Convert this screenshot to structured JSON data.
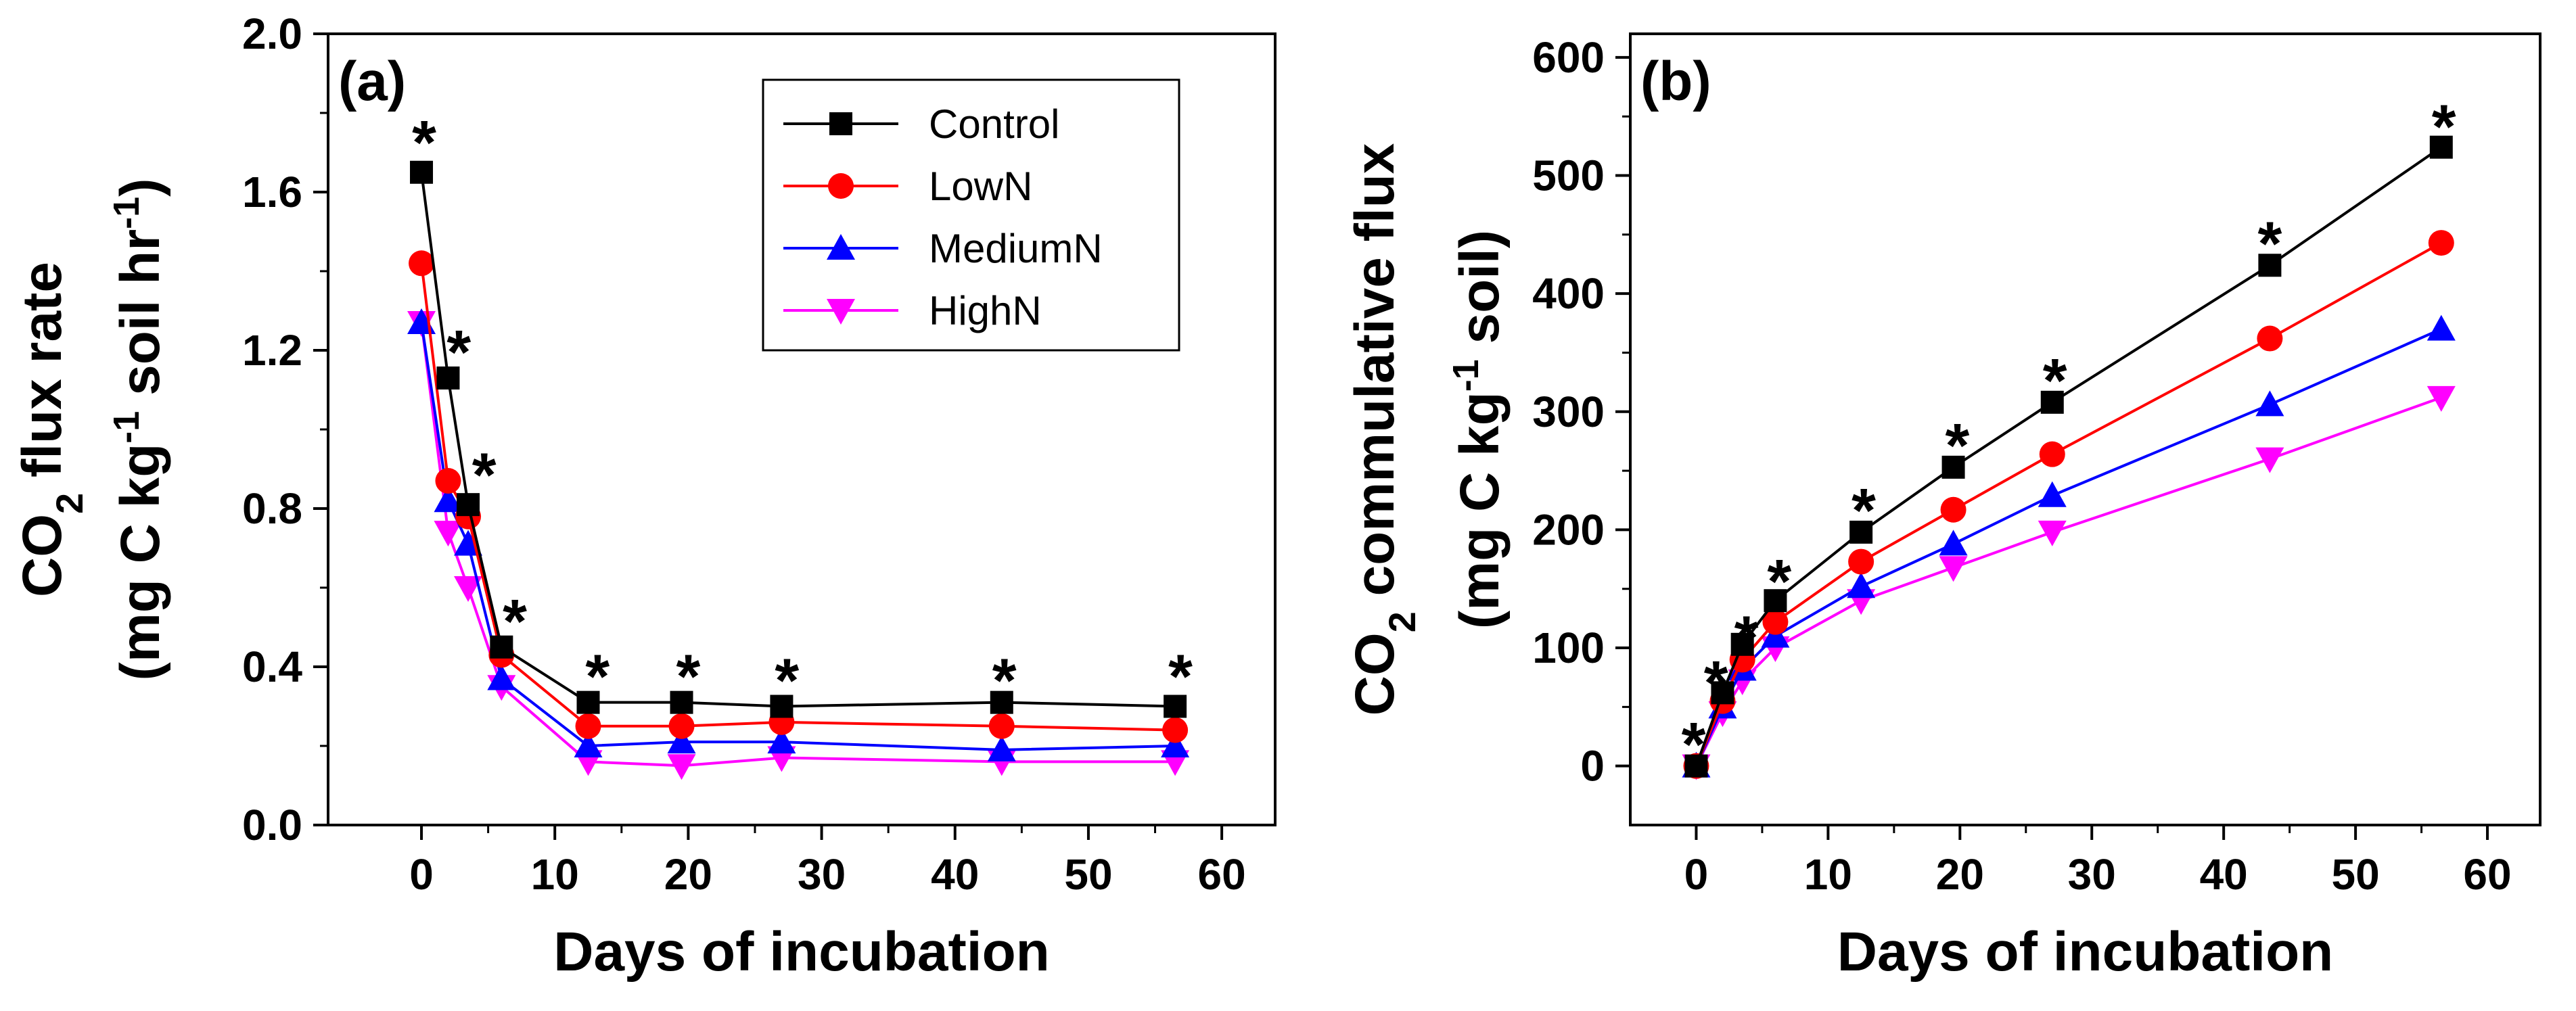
{
  "chart_data": [
    {
      "type": "line",
      "panel_label": "(a)",
      "xlabel": "Days of incubation",
      "ylabel_line1": {
        "pre": "CO",
        "sub": "2",
        "post": " flux rate"
      },
      "ylabel_line2": {
        "pre": "(mg C kg",
        "sup1": "-1",
        "mid": " soil hr",
        "sup2": "-1",
        "post": ")"
      },
      "xlim": [
        -7,
        64
      ],
      "ylim": [
        0,
        2.0
      ],
      "xticks": [
        0,
        10,
        20,
        30,
        40,
        50,
        60
      ],
      "xtick_labels": [
        "0",
        "10",
        "20",
        "30",
        "40",
        "50",
        "60"
      ],
      "yticks": [
        0,
        0.4,
        0.8,
        1.2,
        1.6,
        2.0
      ],
      "ytick_labels": [
        "0.0",
        "0.4",
        "0.8",
        "1.2",
        "1.6",
        "2.0"
      ],
      "x": [
        0,
        2,
        3.5,
        6,
        12.5,
        19.5,
        27,
        43.5,
        56.5
      ],
      "series": [
        {
          "name": "Control",
          "color": "#000000",
          "marker": "square",
          "values": [
            1.65,
            1.13,
            0.81,
            0.45,
            0.31,
            0.31,
            0.3,
            0.31,
            0.3
          ]
        },
        {
          "name": "LowN",
          "color": "#ff0000",
          "marker": "circle",
          "values": [
            1.42,
            0.87,
            0.78,
            0.43,
            0.25,
            0.25,
            0.26,
            0.25,
            0.24
          ]
        },
        {
          "name": "MediumN",
          "color": "#0000ff",
          "marker": "triangle-up",
          "values": [
            1.27,
            0.82,
            0.71,
            0.37,
            0.2,
            0.21,
            0.21,
            0.19,
            0.2
          ]
        },
        {
          "name": "HighN",
          "color": "#ff00ff",
          "marker": "triangle-down",
          "values": [
            1.27,
            0.74,
            0.6,
            0.35,
            0.16,
            0.15,
            0.17,
            0.16,
            0.16
          ]
        }
      ],
      "annotations": [
        {
          "text": "*",
          "x": 0.2,
          "y": 1.76
        },
        {
          "text": "*",
          "x": 2.8,
          "y": 1.23
        },
        {
          "text": "*",
          "x": 4.7,
          "y": 0.92
        },
        {
          "text": "*",
          "x": 7.0,
          "y": 0.55
        },
        {
          "text": "*",
          "x": 13.2,
          "y": 0.41
        },
        {
          "text": "*",
          "x": 20.0,
          "y": 0.41
        },
        {
          "text": "*",
          "x": 27.4,
          "y": 0.4
        },
        {
          "text": "*",
          "x": 43.7,
          "y": 0.4
        },
        {
          "text": "*",
          "x": 56.9,
          "y": 0.41
        }
      ],
      "legend_position": "top-right",
      "grid": false
    },
    {
      "type": "line",
      "panel_label": "(b)",
      "xlabel": "Days of incubation",
      "ylabel_line1": {
        "pre": "CO",
        "sub": "2",
        "post": " commulative flux"
      },
      "ylabel_line2": {
        "pre": "(mg C kg",
        "sup1": "-1",
        "mid": " soil",
        "sup2": "",
        "post": ")"
      },
      "xlim": [
        -5,
        64
      ],
      "ylim": [
        -50,
        620
      ],
      "xticks": [
        0,
        10,
        20,
        30,
        40,
        50,
        60
      ],
      "xtick_labels": [
        "0",
        "10",
        "20",
        "30",
        "40",
        "50",
        "60"
      ],
      "yticks": [
        0,
        100,
        200,
        300,
        400,
        500,
        600
      ],
      "ytick_labels": [
        "0",
        "100",
        "200",
        "300",
        "400",
        "500",
        "600"
      ],
      "x": [
        0,
        2,
        3.5,
        6,
        12.5,
        19.5,
        27,
        43.5,
        56.5
      ],
      "series": [
        {
          "name": "Control",
          "color": "#000000",
          "marker": "square",
          "values": [
            0,
            62,
            103,
            140,
            198,
            253,
            308,
            424,
            524
          ]
        },
        {
          "name": "LowN",
          "color": "#ff0000",
          "marker": "circle",
          "values": [
            0,
            55,
            90,
            122,
            173,
            217,
            264,
            362,
            443
          ]
        },
        {
          "name": "MediumN",
          "color": "#0000ff",
          "marker": "triangle-up",
          "values": [
            0,
            50,
            82,
            110,
            152,
            188,
            229,
            306,
            370
          ]
        },
        {
          "name": "HighN",
          "color": "#ff00ff",
          "marker": "triangle-down",
          "values": [
            0,
            45,
            72,
            100,
            140,
            168,
            198,
            260,
            312
          ]
        }
      ],
      "annotations": [
        {
          "text": "*",
          "x": -0.2,
          "y": 30
        },
        {
          "text": "*",
          "x": 1.5,
          "y": 82
        },
        {
          "text": "*",
          "x": 3.8,
          "y": 120
        },
        {
          "text": "*",
          "x": 6.3,
          "y": 168
        },
        {
          "text": "*",
          "x": 12.7,
          "y": 228
        },
        {
          "text": "*",
          "x": 19.8,
          "y": 283
        },
        {
          "text": "*",
          "x": 27.2,
          "y": 338
        },
        {
          "text": "*",
          "x": 43.5,
          "y": 454
        },
        {
          "text": "*",
          "x": 56.7,
          "y": 553
        }
      ],
      "grid": false
    }
  ]
}
